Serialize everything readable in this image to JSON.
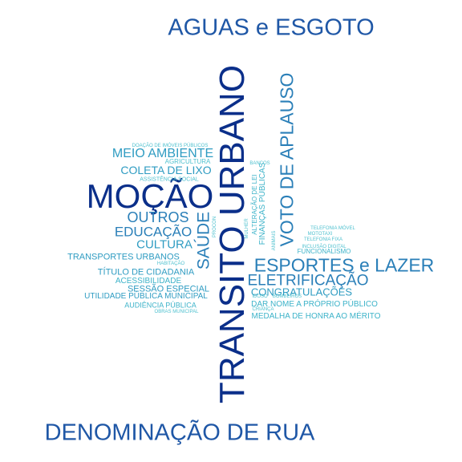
{
  "words": [
    {
      "id": "transito-urbano",
      "text": "TRANSITO URBANO"
    },
    {
      "id": "mocao",
      "text": "MOÇÃO"
    },
    {
      "id": "denominacao-de-rua",
      "text": "DENOMINAÇÃO DE RUA"
    },
    {
      "id": "aguas-e-esgoto",
      "text": "AGUAS e ESGOTO"
    },
    {
      "id": "voto-de-aplauso",
      "text": "VOTO DE APLAUSO"
    },
    {
      "id": "esportes-e-lazer",
      "text": "ESPORTES e LAZER"
    },
    {
      "id": "saude",
      "text": "SAÚDE"
    },
    {
      "id": "eletrificacao",
      "text": "ELETRIFICAÇÃO"
    },
    {
      "id": "outros",
      "text": "OUTROS"
    },
    {
      "id": "educacao",
      "text": "EDUCAÇÃO"
    },
    {
      "id": "meio-ambiente",
      "text": "MEIO AMBIENTE"
    },
    {
      "id": "coleta-de-lixo",
      "text": "COLETA DE LIXO"
    },
    {
      "id": "cultura",
      "text": "CULTURA"
    },
    {
      "id": "congratulacoes",
      "text": "CONGRATULAÇÕES"
    },
    {
      "id": "transportes-urbanos",
      "text": "TRANSPORTES URBANOS"
    },
    {
      "id": "titulo-de-cidadania",
      "text": "TÍTULO DE CIDADANIA"
    },
    {
      "id": "sessao-especial",
      "text": "SESSÃO ESPECIAL"
    },
    {
      "id": "utilidade-publica-municipal",
      "text": "UTILIDADE PÚBLICA MUNICIPAL"
    },
    {
      "id": "acessibilidade",
      "text": "ACESSIBILIDADE"
    },
    {
      "id": "audiencia-publica",
      "text": "AUDIÊNCIA PÚBLICA"
    },
    {
      "id": "dar-nome",
      "text": "DAR NOME A PRÓPRIO PÚBLICO"
    },
    {
      "id": "medalha-de-honra",
      "text": "MEDALHA DE HONRA AO MÉRITO"
    },
    {
      "id": "financas-publicas",
      "text": "FINANÇAS PÚBLICAS"
    },
    {
      "id": "alteracao-de-lei",
      "text": "ALTERAÇÃO DE LEI"
    },
    {
      "id": "funcionalismo",
      "text": "FUNCIONALISMO"
    },
    {
      "id": "inclusao-digital",
      "text": "INCLUSÃO DIGITAL"
    },
    {
      "id": "telefonia-fixa",
      "text": "TELEFONIA FIXA"
    },
    {
      "id": "telefonia-movel",
      "text": "TELEFONIA MÓVEL"
    },
    {
      "id": "mototaxi",
      "text": "MOTOTAXI"
    },
    {
      "id": "agricultura",
      "text": "AGRICULTURA"
    },
    {
      "id": "assistencia-social",
      "text": "ASSISTÊNCIA SOCIAL"
    },
    {
      "id": "doacao-de-imoveis",
      "text": "DOAÇÃO DE IMÓVEIS PÚBLICOS"
    },
    {
      "id": "habitacao",
      "text": "HABITAÇÃO"
    },
    {
      "id": "obras-municipal",
      "text": "OBRAS MUNICIPAL"
    },
    {
      "id": "crianca",
      "text": "CRIANÇA"
    },
    {
      "id": "idoso",
      "text": "IDOSO"
    },
    {
      "id": "bombeiros",
      "text": "BOMBEIROS"
    },
    {
      "id": "animais",
      "text": "ANIMAIS"
    },
    {
      "id": "mulher",
      "text": "MULHER"
    },
    {
      "id": "bancos",
      "text": "BANCOS"
    },
    {
      "id": "procon",
      "text": "PROCON"
    }
  ]
}
